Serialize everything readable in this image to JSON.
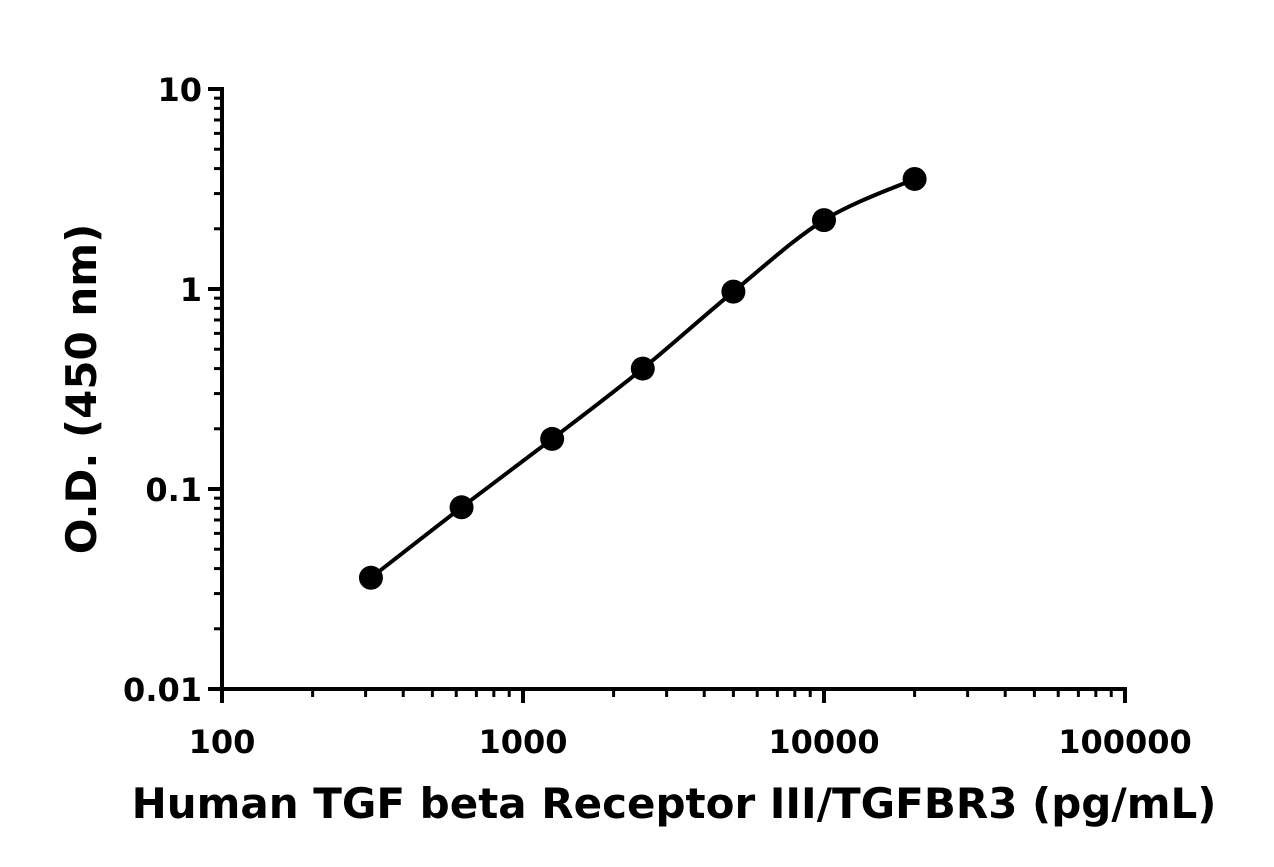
{
  "chart_data": {
    "type": "scatter",
    "title": "",
    "xlabel": "Human TGF beta Receptor III/TGFBR3 (pg/mL)",
    "ylabel": "O.D. (450 nm)",
    "xscale": "log",
    "yscale": "log",
    "xlim": [
      100,
      100000
    ],
    "ylim": [
      0.01,
      10
    ],
    "xticks": [
      "100",
      "1000",
      "10000",
      "100000"
    ],
    "yticks": [
      "0.01",
      "0.1",
      "1",
      "10"
    ],
    "grid": false,
    "fit_line": "smooth curve through points",
    "marker_color": "#000000",
    "series": [
      {
        "x": [
          312.5,
          625,
          1250,
          2500,
          5000,
          10000,
          20000
        ],
        "y": [
          0.036,
          0.081,
          0.178,
          0.4,
          0.97,
          2.21,
          3.55
        ]
      }
    ]
  }
}
